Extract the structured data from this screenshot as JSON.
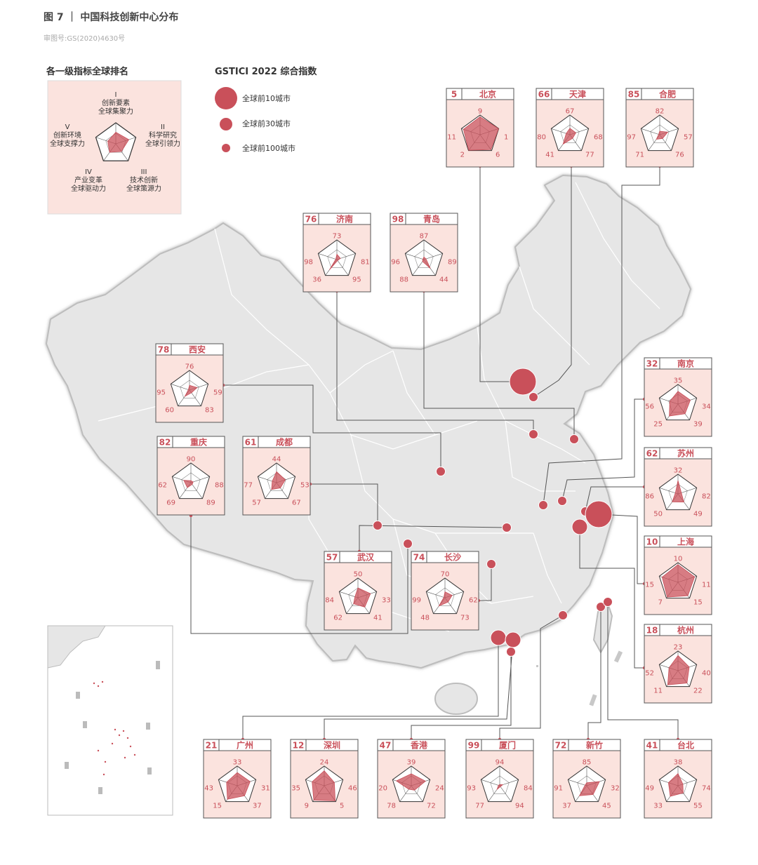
{
  "figure": {
    "title": "图 7 ｜ 中国科技创新中心分布",
    "approval": "审图号:GS(2020)4630号"
  },
  "colors": {
    "accent": "#c9505a",
    "panel": "#fbe3de",
    "land": "#e6e6e6",
    "border": "#bdbdbd"
  },
  "axes_legend": {
    "title": "各一级指标全球排名",
    "axes": [
      {
        "numeral": "I",
        "line1": "创新要素",
        "line2": "全球集聚力"
      },
      {
        "numeral": "II",
        "line1": "科学研究",
        "line2": "全球引领力"
      },
      {
        "numeral": "III",
        "line1": "技术创新",
        "line2": "全球策源力"
      },
      {
        "numeral": "IV",
        "line1": "产业变革",
        "line2": "全球驱动力"
      },
      {
        "numeral": "V",
        "line1": "创新环境",
        "line2": "全球支撑力"
      }
    ]
  },
  "size_legend": {
    "title": "GSTICI 2022 综合指数",
    "items": [
      {
        "label": "全球前10城市",
        "tier": 3
      },
      {
        "label": "全球前30城市",
        "tier": 2
      },
      {
        "label": "全球前100城市",
        "tier": 1
      }
    ]
  },
  "cities": [
    {
      "name": "北京",
      "rank": 5,
      "v": [
        9,
        1,
        6,
        2,
        11
      ]
    },
    {
      "name": "天津",
      "rank": 66,
      "v": [
        67,
        68,
        77,
        41,
        80
      ]
    },
    {
      "name": "合肥",
      "rank": 85,
      "v": [
        82,
        57,
        76,
        71,
        97
      ]
    },
    {
      "name": "济南",
      "rank": 76,
      "v": [
        73,
        81,
        95,
        36,
        98
      ]
    },
    {
      "name": "青岛",
      "rank": 98,
      "v": [
        87,
        89,
        44,
        88,
        96
      ]
    },
    {
      "name": "西安",
      "rank": 78,
      "v": [
        76,
        59,
        83,
        60,
        95
      ]
    },
    {
      "name": "重庆",
      "rank": 82,
      "v": [
        90,
        88,
        89,
        69,
        62
      ]
    },
    {
      "name": "成都",
      "rank": 61,
      "v": [
        44,
        53,
        67,
        57,
        77
      ]
    },
    {
      "name": "武汉",
      "rank": 57,
      "v": [
        50,
        33,
        41,
        62,
        84
      ]
    },
    {
      "name": "长沙",
      "rank": 74,
      "v": [
        70,
        62,
        73,
        48,
        99
      ]
    },
    {
      "name": "南京",
      "rank": 32,
      "v": [
        35,
        34,
        39,
        25,
        56
      ]
    },
    {
      "name": "苏州",
      "rank": 62,
      "v": [
        32,
        82,
        49,
        50,
        86
      ]
    },
    {
      "name": "上海",
      "rank": 10,
      "v": [
        10,
        11,
        15,
        7,
        15
      ]
    },
    {
      "name": "杭州",
      "rank": 18,
      "v": [
        23,
        40,
        22,
        11,
        52
      ]
    },
    {
      "name": "广州",
      "rank": 21,
      "v": [
        33,
        31,
        37,
        15,
        43
      ]
    },
    {
      "name": "深圳",
      "rank": 12,
      "v": [
        24,
        46,
        5,
        9,
        35
      ]
    },
    {
      "name": "香港",
      "rank": 47,
      "v": [
        39,
        24,
        72,
        78,
        20
      ]
    },
    {
      "name": "厦门",
      "rank": 99,
      "v": [
        94,
        84,
        94,
        77,
        93
      ]
    },
    {
      "name": "新竹",
      "rank": 72,
      "v": [
        85,
        32,
        45,
        37,
        91
      ]
    },
    {
      "name": "台北",
      "rank": 41,
      "v": [
        38,
        74,
        55,
        33,
        49
      ]
    }
  ]
}
